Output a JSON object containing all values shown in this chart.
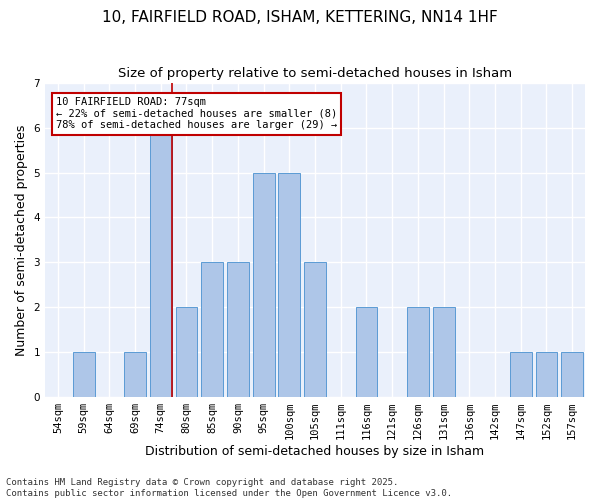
{
  "title_line1": "10, FAIRFIELD ROAD, ISHAM, KETTERING, NN14 1HF",
  "title_line2": "Size of property relative to semi-detached houses in Isham",
  "xlabel": "Distribution of semi-detached houses by size in Isham",
  "ylabel": "Number of semi-detached properties",
  "footer": "Contains HM Land Registry data © Crown copyright and database right 2025.\nContains public sector information licensed under the Open Government Licence v3.0.",
  "categories": [
    "54sqm",
    "59sqm",
    "64sqm",
    "69sqm",
    "74sqm",
    "80sqm",
    "85sqm",
    "90sqm",
    "95sqm",
    "100sqm",
    "105sqm",
    "111sqm",
    "116sqm",
    "121sqm",
    "126sqm",
    "131sqm",
    "136sqm",
    "142sqm",
    "147sqm",
    "152sqm",
    "157sqm"
  ],
  "values": [
    0,
    1,
    0,
    1,
    6,
    2,
    3,
    3,
    5,
    5,
    3,
    0,
    2,
    0,
    2,
    2,
    0,
    0,
    1,
    1,
    1
  ],
  "bar_color": "#aec6e8",
  "bar_edge_color": "#5b9bd5",
  "highlight_index": 4,
  "highlight_color": "#c00000",
  "annotation_text": "10 FAIRFIELD ROAD: 77sqm\n← 22% of semi-detached houses are smaller (8)\n78% of semi-detached houses are larger (29) →",
  "annotation_box_color": "white",
  "annotation_box_edge_color": "#c00000",
  "ylim": [
    0,
    7
  ],
  "yticks": [
    0,
    1,
    2,
    3,
    4,
    5,
    6,
    7
  ],
  "background_color": "#eaf0fb",
  "grid_color": "white",
  "title_fontsize": 11,
  "subtitle_fontsize": 9.5,
  "axis_label_fontsize": 9,
  "tick_fontsize": 7.5,
  "annotation_fontsize": 7.5,
  "footer_fontsize": 6.5
}
